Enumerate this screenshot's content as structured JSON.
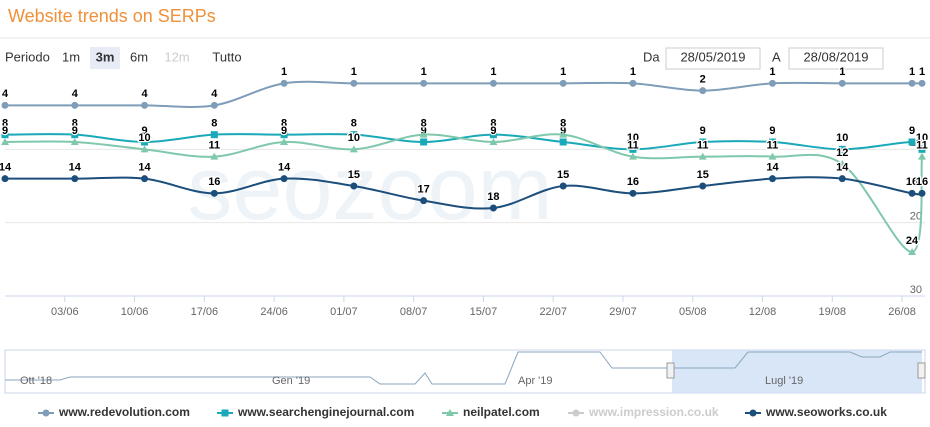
{
  "header": {
    "title": "Website trends on SERPs"
  },
  "controls": {
    "period_label": "Periodo",
    "buttons": [
      "1m",
      "3m",
      "6m",
      "12m",
      "Tutto"
    ],
    "active": "3m",
    "disabled": "12m",
    "from_label": "Da",
    "from": "28/05/2019",
    "to_label": "A",
    "to": "28/08/2019"
  },
  "watermark": "seozoom",
  "navigator": {
    "labels": [
      "Ott '18",
      "Gen '19",
      "Apr '19",
      "Lugl '19"
    ]
  },
  "chart_data": {
    "type": "line",
    "x": [
      "28/05",
      "04/06",
      "11/06",
      "18/06",
      "25/06",
      "02/07",
      "09/07",
      "16/07",
      "23/07",
      "30/07",
      "06/08",
      "13/08",
      "20/08",
      "27/08",
      "28/08"
    ],
    "xlim": [
      "28/05",
      "28/08"
    ],
    "xticks": [
      "03/06",
      "10/06",
      "17/06",
      "24/06",
      "01/07",
      "08/07",
      "15/07",
      "22/07",
      "29/07",
      "05/08",
      "12/08",
      "19/08",
      "26/08"
    ],
    "ylim": [
      0,
      30
    ],
    "yticks": [
      10,
      20,
      30
    ],
    "reversed": true,
    "grid": true,
    "series": [
      {
        "name": "www.redevolution.com",
        "color": "#7f9db9",
        "marker": "circle",
        "values": [
          4,
          4,
          4,
          4,
          1,
          1,
          1,
          1,
          1,
          1,
          2,
          1,
          1,
          1,
          1
        ]
      },
      {
        "name": "www.searchenginejournal.com",
        "color": "#1aa9b8",
        "marker": "square",
        "values": [
          8,
          8,
          9,
          8,
          8,
          8,
          9,
          8,
          9,
          10,
          9,
          9,
          10,
          9,
          10
        ]
      },
      {
        "name": "neilpatel.com",
        "color": "#80c8ab",
        "marker": "triangle",
        "values": [
          9,
          9,
          10,
          11,
          9,
          10,
          8,
          9,
          8,
          11,
          11,
          11,
          12,
          24,
          11
        ]
      },
      {
        "name": "www.impression.co.uk",
        "color": "#cccccc",
        "marker": "circle",
        "visible": false,
        "values": [
          null,
          null,
          null,
          null,
          null,
          null,
          null,
          null,
          null,
          null,
          null,
          null,
          null,
          null,
          null
        ]
      },
      {
        "name": "www.seoworks.co.uk",
        "color": "#1c4e7c",
        "marker": "circle",
        "values": [
          14,
          14,
          14,
          16,
          14,
          15,
          17,
          18,
          15,
          16,
          15,
          14,
          14,
          16,
          16
        ]
      }
    ]
  }
}
